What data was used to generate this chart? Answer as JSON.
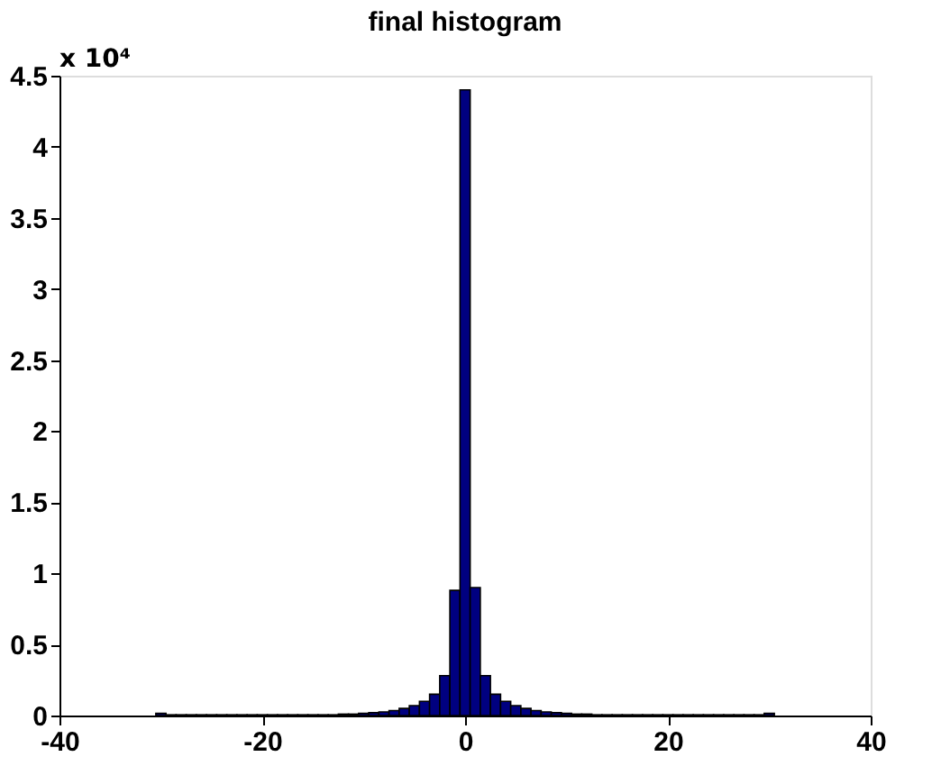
{
  "chart_data": {
    "type": "histogram",
    "title": "final histogram",
    "bins": [
      -30.5,
      -29.5,
      -28.5,
      -27.5,
      -26.5,
      -25.5,
      -24.5,
      -23.5,
      -22.5,
      -21.5,
      -20.5,
      -19.5,
      -18.5,
      -17.5,
      -16.5,
      -15.5,
      -14.5,
      -13.5,
      -12.5,
      -11.5,
      -10.5,
      -9.5,
      -8.5,
      -7.5,
      -6.5,
      -5.5,
      -4.5,
      -3.5,
      -2.5,
      -1.5,
      -0.5,
      0.5,
      1.5,
      2.5,
      3.5,
      4.5,
      5.5,
      6.5,
      7.5,
      8.5,
      9.5,
      10.5,
      11.5,
      12.5,
      13.5,
      14.5,
      15.5,
      16.5,
      17.5,
      18.5,
      19.5,
      20.5,
      21.5,
      22.5,
      23.5,
      24.5,
      25.5,
      26.5,
      27.5,
      28.5,
      29.5,
      30.5
    ],
    "values": [
      0.015,
      0.005,
      0.005,
      0.005,
      0.005,
      0.005,
      0.005,
      0.005,
      0.005,
      0.005,
      0.005,
      0.005,
      0.005,
      0.005,
      0.005,
      0.005,
      0.005,
      0.005,
      0.01,
      0.01,
      0.015,
      0.02,
      0.025,
      0.035,
      0.05,
      0.07,
      0.1,
      0.15,
      0.28,
      0.88,
      4.4,
      0.9,
      0.28,
      0.15,
      0.1,
      0.07,
      0.05,
      0.035,
      0.025,
      0.02,
      0.015,
      0.01,
      0.01,
      0.005,
      0.005,
      0.005,
      0.005,
      0.005,
      0.005,
      0.005,
      0.005,
      0.005,
      0.005,
      0.005,
      0.005,
      0.005,
      0.005,
      0.005,
      0.005,
      0.005,
      0.015
    ],
    "color": "#000080",
    "xlim": [
      -40,
      40
    ],
    "xticks": [
      -40,
      -20,
      0,
      20,
      40
    ],
    "ylim": [
      0,
      4.5
    ],
    "yticks": [
      0,
      0.5,
      1,
      1.5,
      2,
      2.5,
      3,
      3.5,
      4,
      4.5
    ],
    "annotations": [
      "x 10⁴"
    ],
    "grid": false
  }
}
